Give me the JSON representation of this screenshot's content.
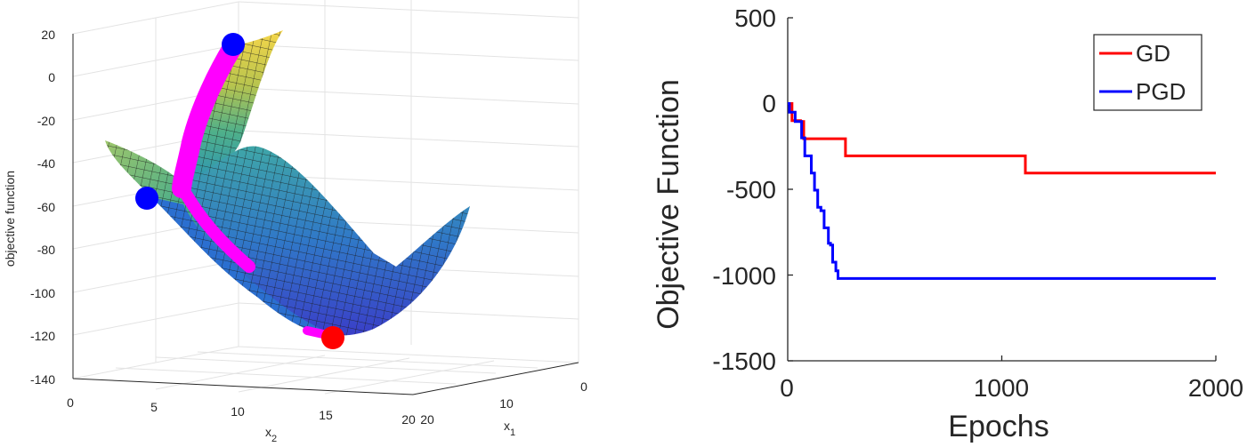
{
  "chart_data": [
    {
      "type": "surface",
      "zlabel": "objective function",
      "xlabel_main": "x",
      "xlabel_sub": "2",
      "ylabel_main": "x",
      "ylabel_sub": "1",
      "z_ticks": [
        "20",
        "0",
        "-20",
        "-40",
        "-60",
        "-80",
        "-100",
        "-120",
        "-140"
      ],
      "x2_ticks": [
        "0",
        "5",
        "10",
        "15",
        "20"
      ],
      "x1_ticks": [
        "20",
        "10",
        "0"
      ],
      "zlim": [
        -140,
        20
      ],
      "x2lim": [
        0,
        20
      ],
      "x1lim": [
        0,
        20
      ],
      "grid": true,
      "markers": [
        {
          "color": "#0000ff",
          "note": "start point (top)",
          "z": 17
        },
        {
          "color": "#0000ff",
          "note": "start point (left)",
          "z": -55
        },
        {
          "color": "#ff0000",
          "note": "minimum",
          "z": -120
        }
      ],
      "path_color": "#ff00ff"
    },
    {
      "type": "line",
      "xlabel": "Epochs",
      "ylabel": "Objective Function",
      "xlim": [
        0,
        2000
      ],
      "ylim": [
        -1500,
        500
      ],
      "x_ticks": [
        "0",
        "1000",
        "2000"
      ],
      "y_ticks": [
        "500",
        "0",
        "-500",
        "-1000",
        "-1500"
      ],
      "legend_position": "top-right",
      "series": [
        {
          "name": "GD",
          "color": "#ff0000",
          "x": [
            0,
            20,
            20,
            60,
            60,
            75,
            75,
            270,
            270,
            1110,
            1110,
            2000
          ],
          "y": [
            0,
            0,
            -100,
            -100,
            -105,
            -105,
            -205,
            -205,
            -305,
            -305,
            -405,
            -405
          ]
        },
        {
          "name": "PGD",
          "color": "#0000ff",
          "x": [
            0,
            8,
            8,
            35,
            35,
            65,
            65,
            80,
            80,
            110,
            110,
            125,
            125,
            140,
            140,
            155,
            155,
            170,
            170,
            190,
            190,
            200,
            200,
            210,
            210,
            225,
            225,
            235,
            235,
            2000
          ],
          "y": [
            0,
            0,
            -50,
            -50,
            -105,
            -105,
            -200,
            -200,
            -305,
            -305,
            -405,
            -405,
            -505,
            -505,
            -605,
            -605,
            -625,
            -625,
            -725,
            -725,
            -815,
            -815,
            -825,
            -825,
            -925,
            -925,
            -975,
            -975,
            -1020,
            -1020
          ]
        }
      ]
    }
  ]
}
